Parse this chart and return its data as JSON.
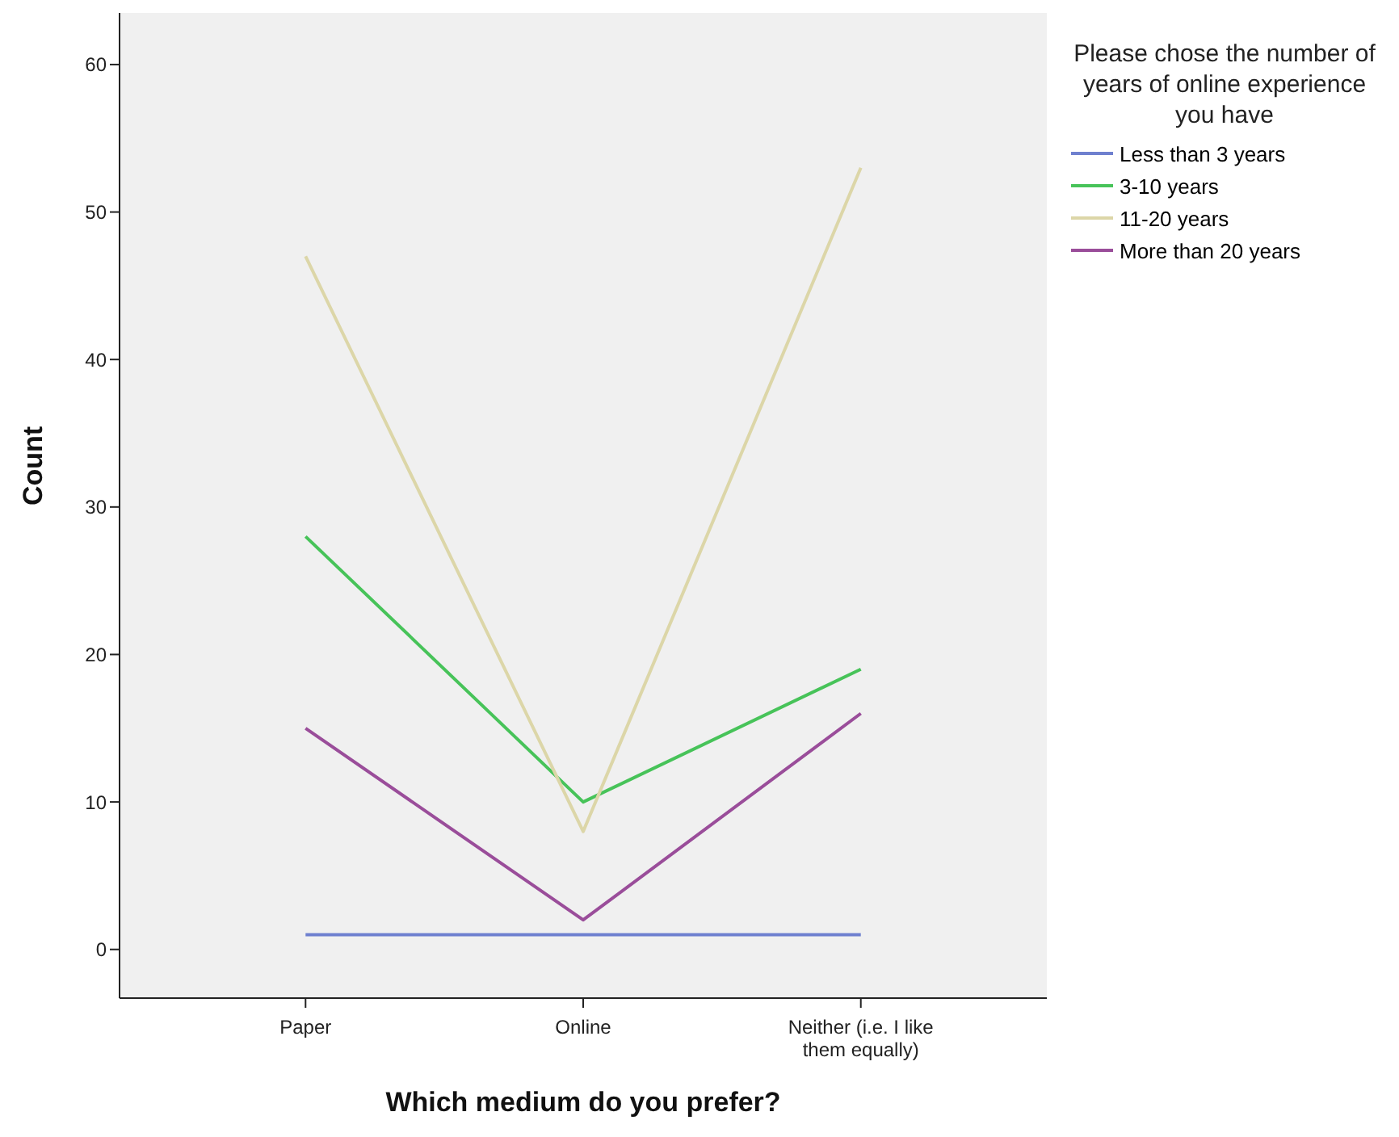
{
  "chart_data": {
    "type": "line",
    "xlabel": "Which medium do you prefer?",
    "ylabel": "Count",
    "legend_title": "Please chose the number of years of online experience you have",
    "categories": [
      "Paper",
      "Online",
      "Neither (i.e. I like them equally)"
    ],
    "series": [
      {
        "name": "Less than 3 years",
        "color": "#6f80cf",
        "values": [
          1,
          1,
          1
        ]
      },
      {
        "name": "3-10 years",
        "color": "#47c359",
        "values": [
          28,
          10,
          19
        ]
      },
      {
        "name": "11-20 years",
        "color": "#dcd6a8",
        "values": [
          47,
          8,
          53
        ]
      },
      {
        "name": "More than 20 years",
        "color": "#9a4d9a",
        "values": [
          15,
          2,
          16
        ]
      }
    ],
    "ylim": [
      -3.3,
      63.5
    ],
    "yticks": [
      0,
      10,
      20,
      30,
      40,
      50,
      60
    ],
    "grid": false,
    "legend": "top right",
    "marker": "none",
    "line_style": "solid"
  }
}
